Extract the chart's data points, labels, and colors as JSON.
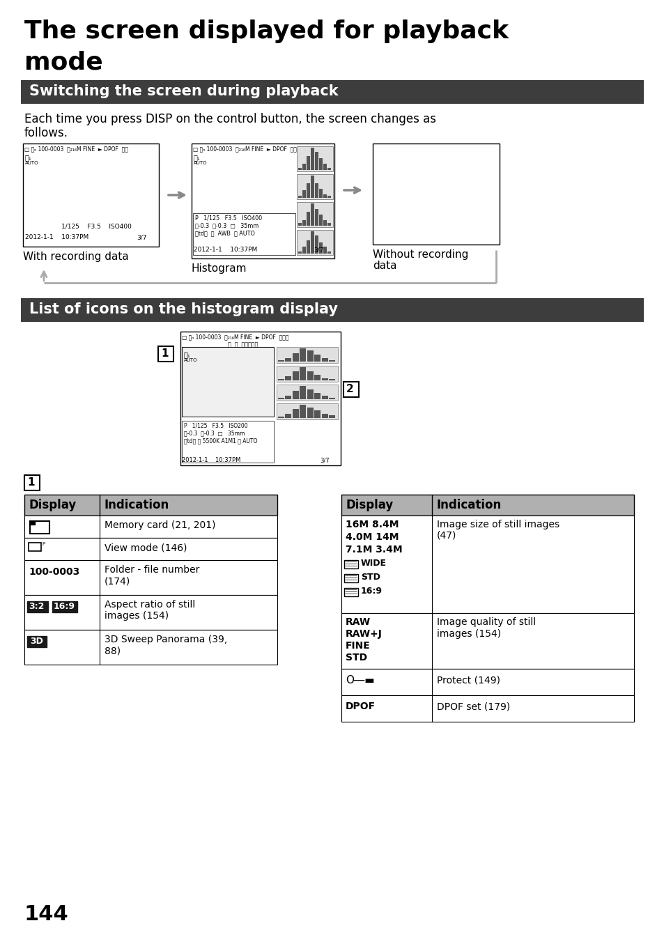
{
  "title_line1": "The screen displayed for playback",
  "title_line2": "mode",
  "section1_title": "Switching the screen during playback",
  "section2_title": "List of icons on the histogram display",
  "body_line1": "Each time you press DISP on the control button, the screen changes as",
  "body_line2": "follows.",
  "screen1_label": "With recording data",
  "screen2_label": "Histogram",
  "screen3_label1": "Without recording",
  "screen3_label2": "data",
  "page_number": "144",
  "header_bg": "#3d3d3d",
  "header_text_color": "#ffffff",
  "table_header_bg": "#b0b0b0",
  "background": "#ffffff",
  "title_fontsize": 26,
  "section_fontsize": 15,
  "body_fontsize": 12,
  "label_fontsize": 11,
  "table_header_fontsize": 12,
  "table_body_fontsize": 10
}
